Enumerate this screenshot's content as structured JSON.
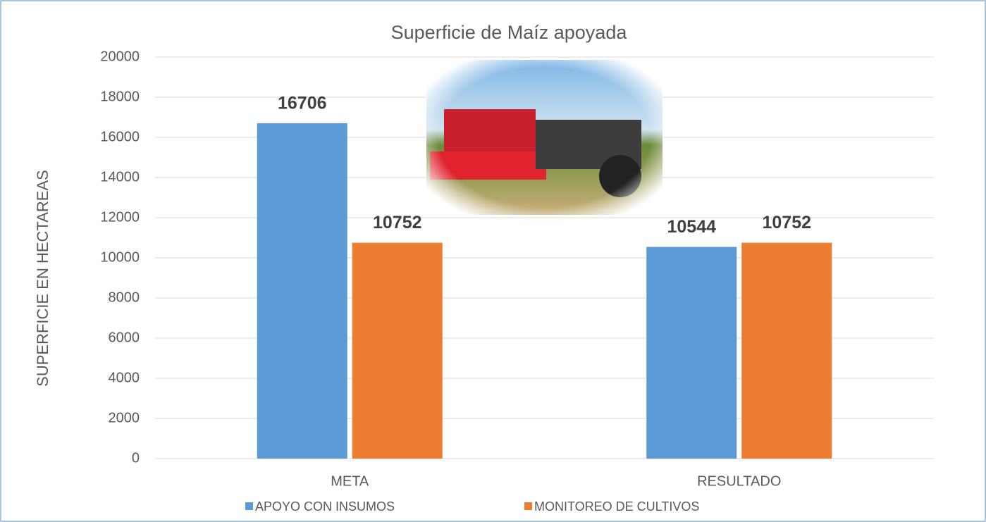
{
  "chart_data": {
    "type": "bar",
    "title": "Superficie de Maíz apoyada",
    "y_label": "SUPERFICIE EN HECTAREAS",
    "categories": [
      "META",
      "RESULTADO"
    ],
    "series": [
      {
        "name": "APOYO CON INSUMOS",
        "color": "#5b9bd5",
        "values": [
          16706,
          10544
        ]
      },
      {
        "name": "MONITOREO DE CULTIVOS",
        "color": "#ed7d31",
        "values": [
          10752,
          10752
        ]
      }
    ],
    "ylim": [
      0,
      20000
    ],
    "yticks": [
      0,
      2000,
      4000,
      6000,
      8000,
      10000,
      12000,
      14000,
      16000,
      18000,
      20000
    ],
    "grid": true,
    "legend": "bottom"
  }
}
